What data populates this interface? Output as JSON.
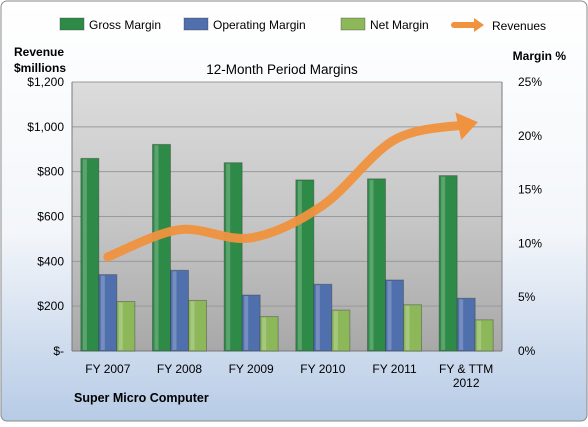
{
  "chart_data": {
    "type": "bar",
    "title": "12-Month Period Margins",
    "categories": [
      [
        "FY 2007"
      ],
      [
        "FY 2008"
      ],
      [
        "FY 2009"
      ],
      [
        "FY 2010"
      ],
      [
        "FY 2011"
      ],
      [
        "FY & TTM",
        "2012"
      ]
    ],
    "series": [
      {
        "name": "Gross Margin",
        "values": [
          17.9,
          19.2,
          17.5,
          15.9,
          16.0,
          16.3
        ],
        "axis": "right",
        "color": "#2e8b47"
      },
      {
        "name": "Operating Margin",
        "values": [
          7.1,
          7.5,
          5.2,
          6.2,
          6.6,
          4.9
        ],
        "axis": "right",
        "color": "#4f6fad"
      },
      {
        "name": "Net Margin",
        "values": [
          4.6,
          4.7,
          3.2,
          3.8,
          4.3,
          2.9
        ],
        "axis": "right",
        "color": "#8db85a"
      },
      {
        "name": "Revenues",
        "type": "line",
        "values": [
          420,
          541,
          505,
          650,
          942,
          1010
        ],
        "axis": "left",
        "color": "#f0923e"
      }
    ],
    "y_left": {
      "label_line1": "Revenue",
      "label_line2": "$millions",
      "ylim": [
        0,
        1200
      ],
      "ticks": [
        "$-",
        "$200",
        "$400",
        "$600",
        "$800",
        "$1,000",
        "$1,200"
      ]
    },
    "y_right": {
      "label": "Margin %",
      "ylim": [
        0,
        25
      ],
      "ticks": [
        "0%",
        "5%",
        "10%",
        "15%",
        "20%",
        "25%"
      ]
    },
    "legend": {
      "position": "top"
    },
    "grid": true
  },
  "footer": {
    "company": "Super Micro Computer"
  }
}
